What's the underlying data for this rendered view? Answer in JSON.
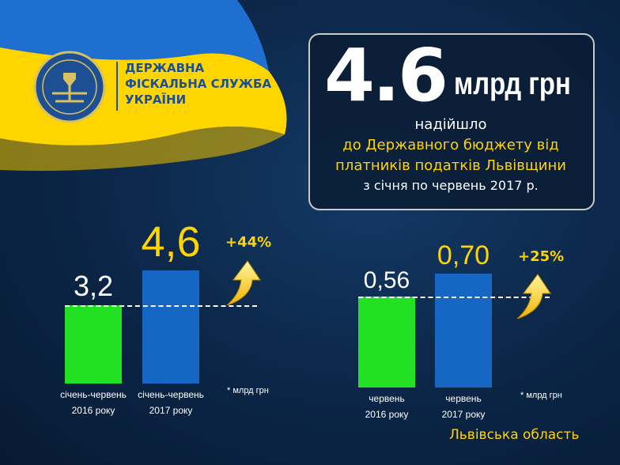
{
  "header": {
    "org": [
      "ДЕРЖАВНА",
      "ФІСКАЛЬНА СЛУЖБА",
      "УКРАЇНИ"
    ]
  },
  "headline": {
    "amount": "4.6",
    "unit": "млрд грн",
    "lines": [
      "надійшло",
      "до Державного бюджету від",
      "платників податків Львівщини",
      "з січня по червень 2017 р."
    ]
  },
  "chart_data": [
    {
      "type": "bar",
      "categories": [
        "січень-червень\n2016 року",
        "січень-червень\n2017 року"
      ],
      "values": [
        3.2,
        4.6
      ],
      "value_labels": [
        "3,2",
        "4,6"
      ],
      "colors": [
        "#22e022",
        "#1667c4"
      ],
      "value_label_colors": [
        "#ffffff",
        "#ffd400"
      ],
      "ylim": [
        0,
        5
      ],
      "change": "+44%",
      "note": "* млрд грн"
    },
    {
      "type": "bar",
      "categories": [
        "червень\n2016 року",
        "червень\n2017 року"
      ],
      "values": [
        0.56,
        0.7
      ],
      "value_labels": [
        "0,56",
        "0,70"
      ],
      "colors": [
        "#22e022",
        "#1667c4"
      ],
      "value_label_colors": [
        "#ffffff",
        "#ffd400"
      ],
      "ylim": [
        0,
        0.75
      ],
      "change": "+25%",
      "note": "* млрд грн"
    }
  ],
  "footer": "Львівська область"
}
